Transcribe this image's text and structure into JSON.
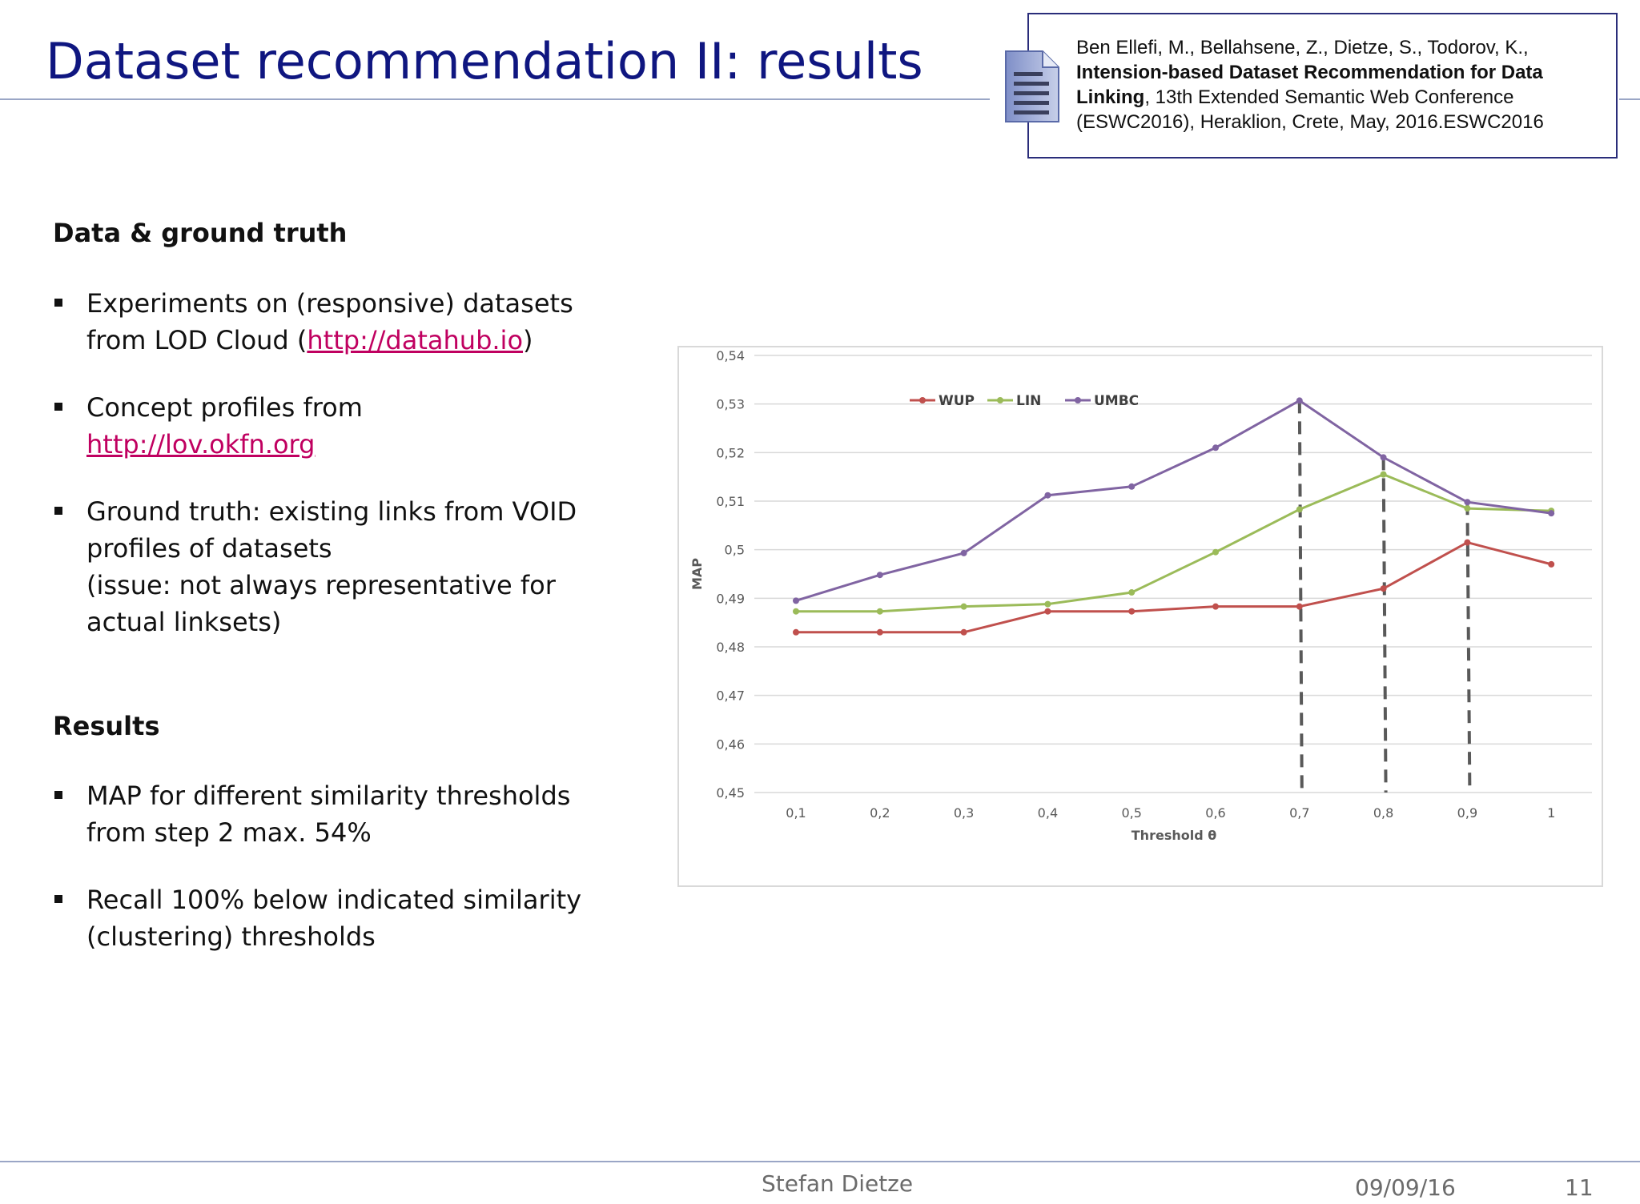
{
  "title": "Dataset recommendation II: results",
  "reference": {
    "authors": "Ben Ellefi, M., Bellahsene, Z., Dietze, S., Todorov, K.,",
    "paper_title_line1": "Intension-based Dataset Recommendation for Data",
    "paper_title_line2": "Linking",
    "venue_line2": ", 13th Extended Semantic Web Conference",
    "venue_line3": "(ESWC2016), Heraklion, Crete, May, 2016.ESWC2016",
    "icon": "document-icon"
  },
  "sections": {
    "data": {
      "heading": "Data & ground truth",
      "bullet1_line1": "Experiments on (responsive) datasets",
      "bullet1_line2_pre": "from LOD Cloud (",
      "bullet1_link": "http://datahub.io",
      "bullet1_line2_post": ")",
      "bullet2_line1": "Concept profiles from",
      "bullet2_link": "http://lov.okfn.org",
      "bullet3_line1": "Ground truth: existing links from VOID",
      "bullet3_line2": "profiles of datasets",
      "bullet3_line3": "(issue: not always representative for",
      "bullet3_line4": "actual linksets)"
    },
    "results": {
      "heading": "Results",
      "bullet1_line1": "MAP for different similarity thresholds",
      "bullet1_line2": "from step 2 max. 54%",
      "bullet2_line1": "Recall 100% below indicated similarity",
      "bullet2_line2": "(clustering) thresholds"
    }
  },
  "chart_data": {
    "type": "line",
    "xlabel": "Threshold θ",
    "ylabel": "MAP",
    "x": [
      "0,1",
      "0,2",
      "0,3",
      "0,4",
      "0,5",
      "0,6",
      "0,7",
      "0,8",
      "0,9",
      "1"
    ],
    "y_ticks": [
      "0,54",
      "0,53",
      "0,52",
      "0,51",
      "0,5",
      "0,49",
      "0,48",
      "0,47",
      "0,46",
      "0,45"
    ],
    "ylim": [
      0.45,
      0.54
    ],
    "legend_position": "top-left",
    "grid": true,
    "series": [
      {
        "name": "WUP",
        "color": "#c0504d",
        "values": [
          0.483,
          0.483,
          0.483,
          0.4873,
          0.4873,
          0.4883,
          0.4883,
          0.492,
          0.5015,
          0.497
        ]
      },
      {
        "name": "LIN",
        "color": "#9bbb59",
        "values": [
          0.4873,
          0.4873,
          0.4883,
          0.4888,
          0.4912,
          0.4995,
          0.5083,
          0.5155,
          0.5085,
          0.508
        ]
      },
      {
        "name": "UMBC",
        "color": "#8064a2",
        "values": [
          0.4895,
          0.4948,
          0.4993,
          0.5112,
          0.513,
          0.521,
          0.5307,
          0.519,
          0.5098,
          0.5075
        ]
      }
    ],
    "dashed_markers_at_x": [
      "0,7",
      "0,8",
      "0,9"
    ]
  },
  "footer": {
    "author": "Stefan Dietze",
    "date": "09/09/16",
    "page": "11"
  }
}
